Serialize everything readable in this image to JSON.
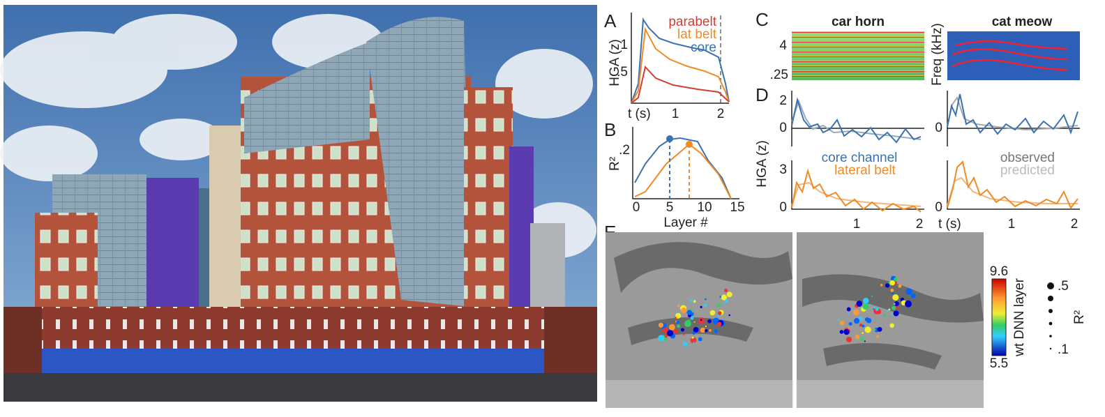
{
  "panel_a": {
    "letter": "A",
    "legend": [
      "parabelt",
      "lat belt",
      "core"
    ],
    "y_label": "HGA (z)",
    "y_ticks": [
      "1",
      ".5"
    ],
    "x_label": "t (s)",
    "x_ticks": [
      "1",
      "2"
    ]
  },
  "panel_b": {
    "letter": "B",
    "y_label": "R²",
    "y_ticks": [
      ".2"
    ],
    "x_ticks": [
      "0",
      "5",
      "10",
      "15"
    ],
    "x_label": "Layer #"
  },
  "panel_c": {
    "letter": "C",
    "titles": [
      "car horn",
      "cat meow"
    ],
    "y_ticks": [
      "4",
      ".25"
    ],
    "y_label": "Freq (kHz)"
  },
  "panel_d": {
    "letter": "D",
    "y_label": "HGA (z)",
    "top_y_ticks": [
      "2",
      "0"
    ],
    "bottom_y_ticks": [
      "3",
      "0"
    ],
    "right_y_ticks": [
      "0",
      "0"
    ],
    "legend_channels": [
      "core channel",
      "lateral belt"
    ],
    "legend_lines": [
      "observed",
      "predicted"
    ],
    "x_ticks": [
      "1",
      "2",
      "1",
      "2"
    ],
    "x_label": "t (s)"
  },
  "panel_e": {
    "letter": "E",
    "colorbar_ticks": [
      "9.6",
      "5.5"
    ],
    "colorbar_label": "wt DNN layer",
    "size_ticks": [
      ".5",
      ".1"
    ],
    "size_label": "R²"
  }
}
